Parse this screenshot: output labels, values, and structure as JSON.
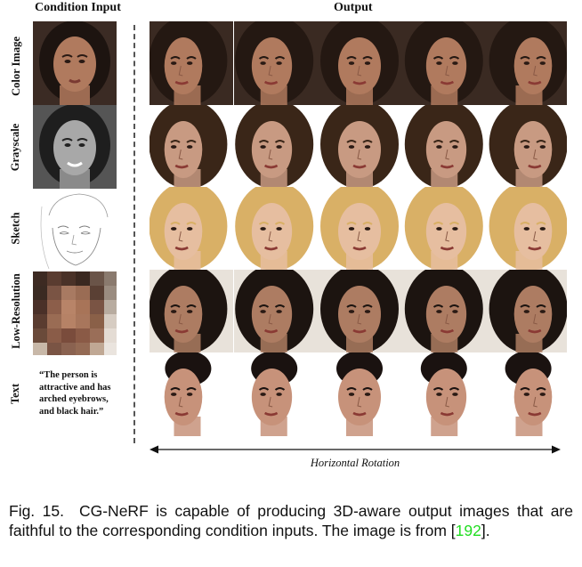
{
  "headers": {
    "condition": "Condition Input",
    "output": "Output"
  },
  "rows": [
    {
      "label": "Color Image",
      "skin": "#b07a5e",
      "hair": "#241812",
      "bg": "#3a2a22"
    },
    {
      "label": "Grayscale",
      "skin": "#c89a82",
      "hair": "#3a2618",
      "bg": "#ffffff"
    },
    {
      "label": "Sketch",
      "skin": "#e6bea0",
      "hair": "#d9b066",
      "bg": "#ffffff"
    },
    {
      "label": "Low-Resolution",
      "skin": "#ad7c62",
      "hair": "#1c1410",
      "bg": "#e8e2da"
    },
    {
      "label": "Text",
      "skin": "#c7927a",
      "hair": "#1a1210",
      "bg": "#ffffff"
    }
  ],
  "text_condition": "“The person is attractive and has arched eyebrows, and black hair.”",
  "rotation_label": "Horizontal Rotation",
  "caption": {
    "fig_label": "Fig. 15.",
    "text": "CG-NeRF is capable of producing 3D-aware output images that are faithful to the corresponding condition inputs. The image is from",
    "ref_open": "[",
    "ref": "192",
    "ref_close": "]."
  }
}
